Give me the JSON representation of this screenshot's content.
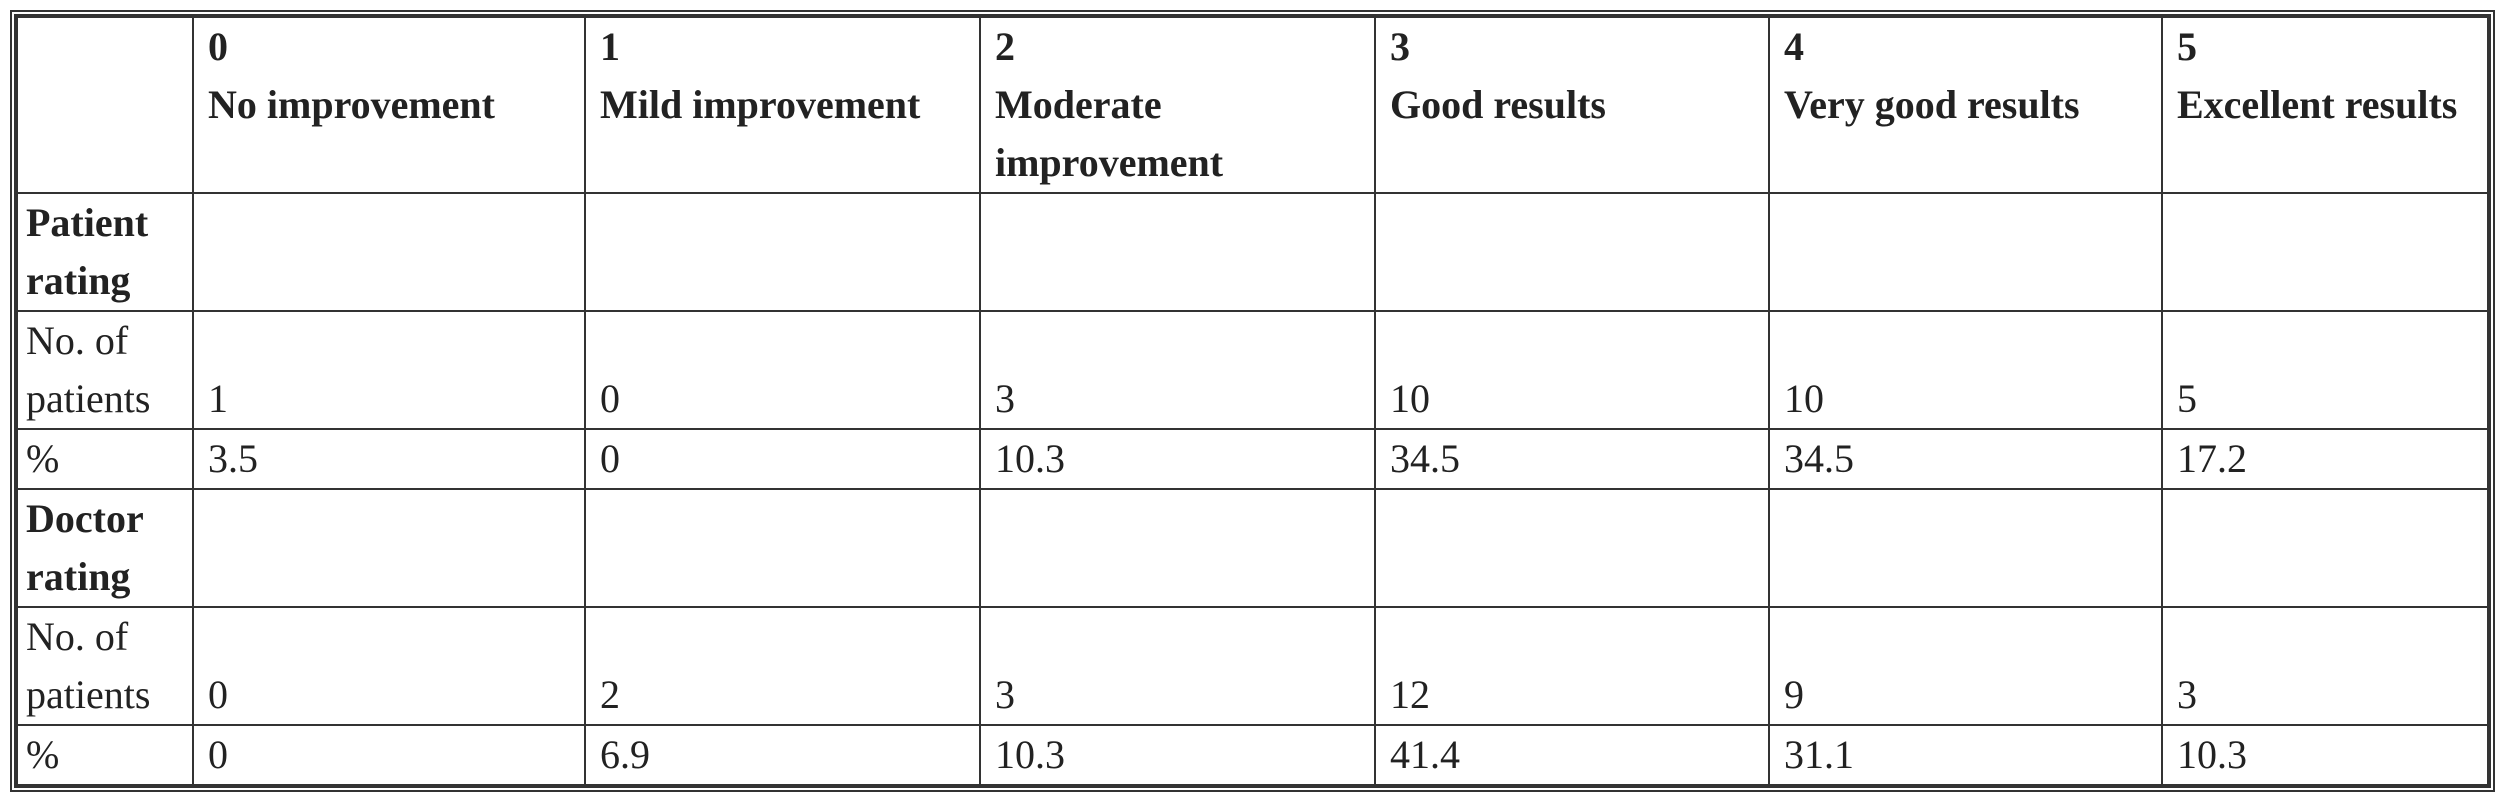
{
  "table": {
    "columns": [
      {
        "score": 0,
        "label": "No improvement"
      },
      {
        "score": 1,
        "label": "Mild improvement"
      },
      {
        "score": 2,
        "label": "Moderate improvement"
      },
      {
        "score": 3,
        "label": "Good results"
      },
      {
        "score": 4,
        "label": "Very good results"
      },
      {
        "score": 5,
        "label": "Excellent results"
      }
    ],
    "sections": [
      {
        "title": "Patient rating",
        "rows": [
          {
            "label": "No. of patients",
            "cells": [
              1,
              0,
              3,
              10,
              10,
              5
            ]
          },
          {
            "label": "%",
            "cells": [
              3.5,
              0,
              10.3,
              34.5,
              34.5,
              17.2
            ]
          }
        ]
      },
      {
        "title": "Doctor rating",
        "rows": [
          {
            "label": "No. of patients",
            "cells": [
              0,
              2,
              3,
              12,
              9,
              3
            ]
          },
          {
            "label": "%",
            "cells": [
              0,
              6.9,
              10.3,
              41.4,
              31.1,
              10.3
            ]
          }
        ]
      }
    ]
  }
}
